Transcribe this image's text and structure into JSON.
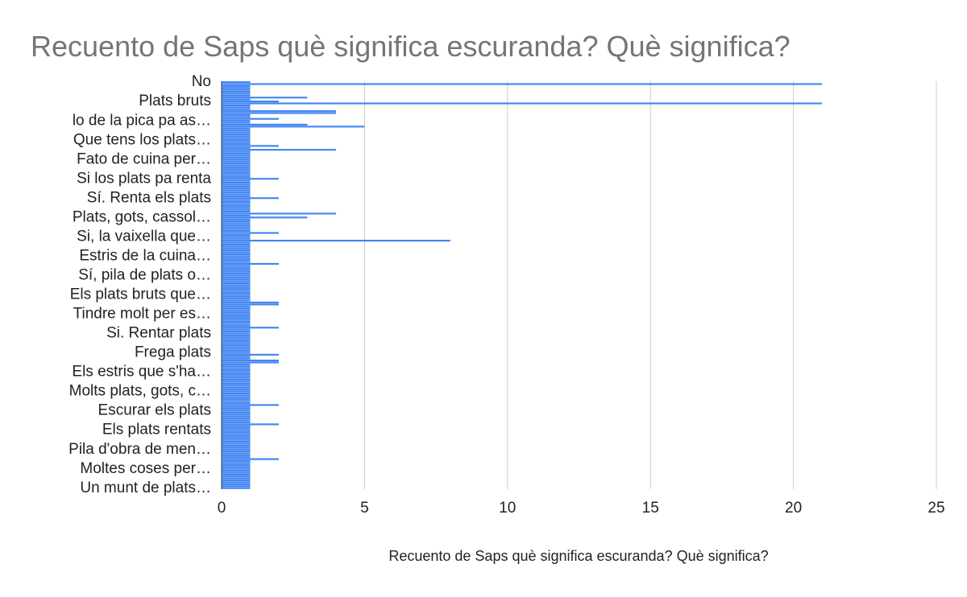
{
  "chart_data": {
    "type": "hbar",
    "title": "Recuento de Saps què significa escuranda? Què significa?",
    "x_label": "Recuento de Saps què significa escuranda? Què significa?",
    "color": "#4285f4",
    "grid": true,
    "xlim": [
      0,
      25
    ],
    "xticks": [
      0,
      5,
      10,
      15,
      20,
      25
    ],
    "categories": [
      "No",
      null,
      null,
      null,
      null,
      null,
      null,
      null,
      null,
      null,
      "Plats bruts",
      null,
      null,
      null,
      null,
      null,
      null,
      null,
      null,
      null,
      "lo de la pica pa as…",
      null,
      null,
      null,
      null,
      null,
      null,
      null,
      null,
      null,
      "Que tens los plats…",
      null,
      null,
      null,
      null,
      null,
      null,
      null,
      null,
      null,
      "Fato de cuina per…",
      null,
      null,
      null,
      null,
      null,
      null,
      null,
      null,
      null,
      "Si los plats pa renta",
      null,
      null,
      null,
      null,
      null,
      null,
      null,
      null,
      null,
      "Sí. Renta els plats",
      null,
      null,
      null,
      null,
      null,
      null,
      null,
      null,
      null,
      "Plats, gots, cassol…",
      null,
      null,
      null,
      null,
      null,
      null,
      null,
      null,
      null,
      "Si, la vaixella que…",
      null,
      null,
      null,
      null,
      null,
      null,
      null,
      null,
      null,
      "Estris de la cuina…",
      null,
      null,
      null,
      null,
      null,
      null,
      null,
      null,
      null,
      "Sí, pila de plats o…",
      null,
      null,
      null,
      null,
      null,
      null,
      null,
      null,
      null,
      "Els plats bruts que…",
      null,
      null,
      null,
      null,
      null,
      null,
      null,
      null,
      null,
      "Tindre molt per es…",
      null,
      null,
      null,
      null,
      null,
      null,
      null,
      null,
      null,
      "Si. Rentar plats",
      null,
      null,
      null,
      null,
      null,
      null,
      null,
      null,
      null,
      "Frega plats",
      null,
      null,
      null,
      null,
      null,
      null,
      null,
      null,
      null,
      "Els estris que s'ha…",
      null,
      null,
      null,
      null,
      null,
      null,
      null,
      null,
      null,
      "Molts plats, gots, c…",
      null,
      null,
      null,
      null,
      null,
      null,
      null,
      null,
      null,
      "Escurar els plats",
      null,
      null,
      null,
      null,
      null,
      null,
      null,
      null,
      null,
      "Els plats rentats",
      null,
      null,
      null,
      null,
      null,
      null,
      null,
      null,
      null,
      "Pila d'obra de men…",
      null,
      null,
      null,
      null,
      null,
      null,
      null,
      null,
      null,
      "Moltes coses per…",
      null,
      null,
      null,
      null,
      null,
      null,
      null,
      null,
      null,
      "Un munt de plats…"
    ],
    "values": [
      1,
      21,
      1,
      1,
      1,
      1,
      1,
      1,
      3,
      1,
      2,
      21,
      1,
      1,
      1,
      4,
      4,
      1,
      1,
      2,
      1,
      1,
      3,
      5,
      1,
      1,
      1,
      1,
      1,
      1,
      1,
      1,
      1,
      2,
      1,
      4,
      1,
      1,
      1,
      1,
      1,
      1,
      1,
      1,
      1,
      1,
      1,
      1,
      1,
      1,
      2,
      1,
      1,
      1,
      1,
      1,
      1,
      1,
      1,
      1,
      2,
      1,
      1,
      1,
      1,
      1,
      1,
      1,
      4,
      1,
      3,
      1,
      1,
      1,
      1,
      1,
      1,
      1,
      2,
      1,
      1,
      1,
      8,
      1,
      1,
      1,
      1,
      1,
      1,
      1,
      1,
      1,
      1,
      1,
      2,
      1,
      1,
      1,
      1,
      1,
      1,
      1,
      1,
      1,
      1,
      1,
      1,
      1,
      1,
      1,
      1,
      1,
      1,
      1,
      2,
      2,
      1,
      1,
      1,
      1,
      1,
      1,
      1,
      1,
      1,
      1,
      1,
      2,
      1,
      1,
      1,
      1,
      1,
      1,
      1,
      1,
      1,
      1,
      1,
      1,
      1,
      2,
      1,
      1,
      2,
      2,
      1,
      1,
      1,
      1,
      1,
      1,
      1,
      1,
      1,
      1,
      1,
      1,
      1,
      1,
      1,
      1,
      1,
      1,
      1,
      1,
      1,
      2,
      1,
      1,
      1,
      1,
      1,
      1,
      1,
      1,
      1,
      2,
      1,
      1,
      1,
      1,
      1,
      1,
      1,
      1,
      1,
      1,
      1,
      1,
      1,
      1,
      1,
      1,
      1,
      2,
      1,
      1,
      1,
      1,
      1,
      1,
      1,
      1,
      1,
      1,
      1,
      1,
      1,
      1,
      1
    ]
  }
}
